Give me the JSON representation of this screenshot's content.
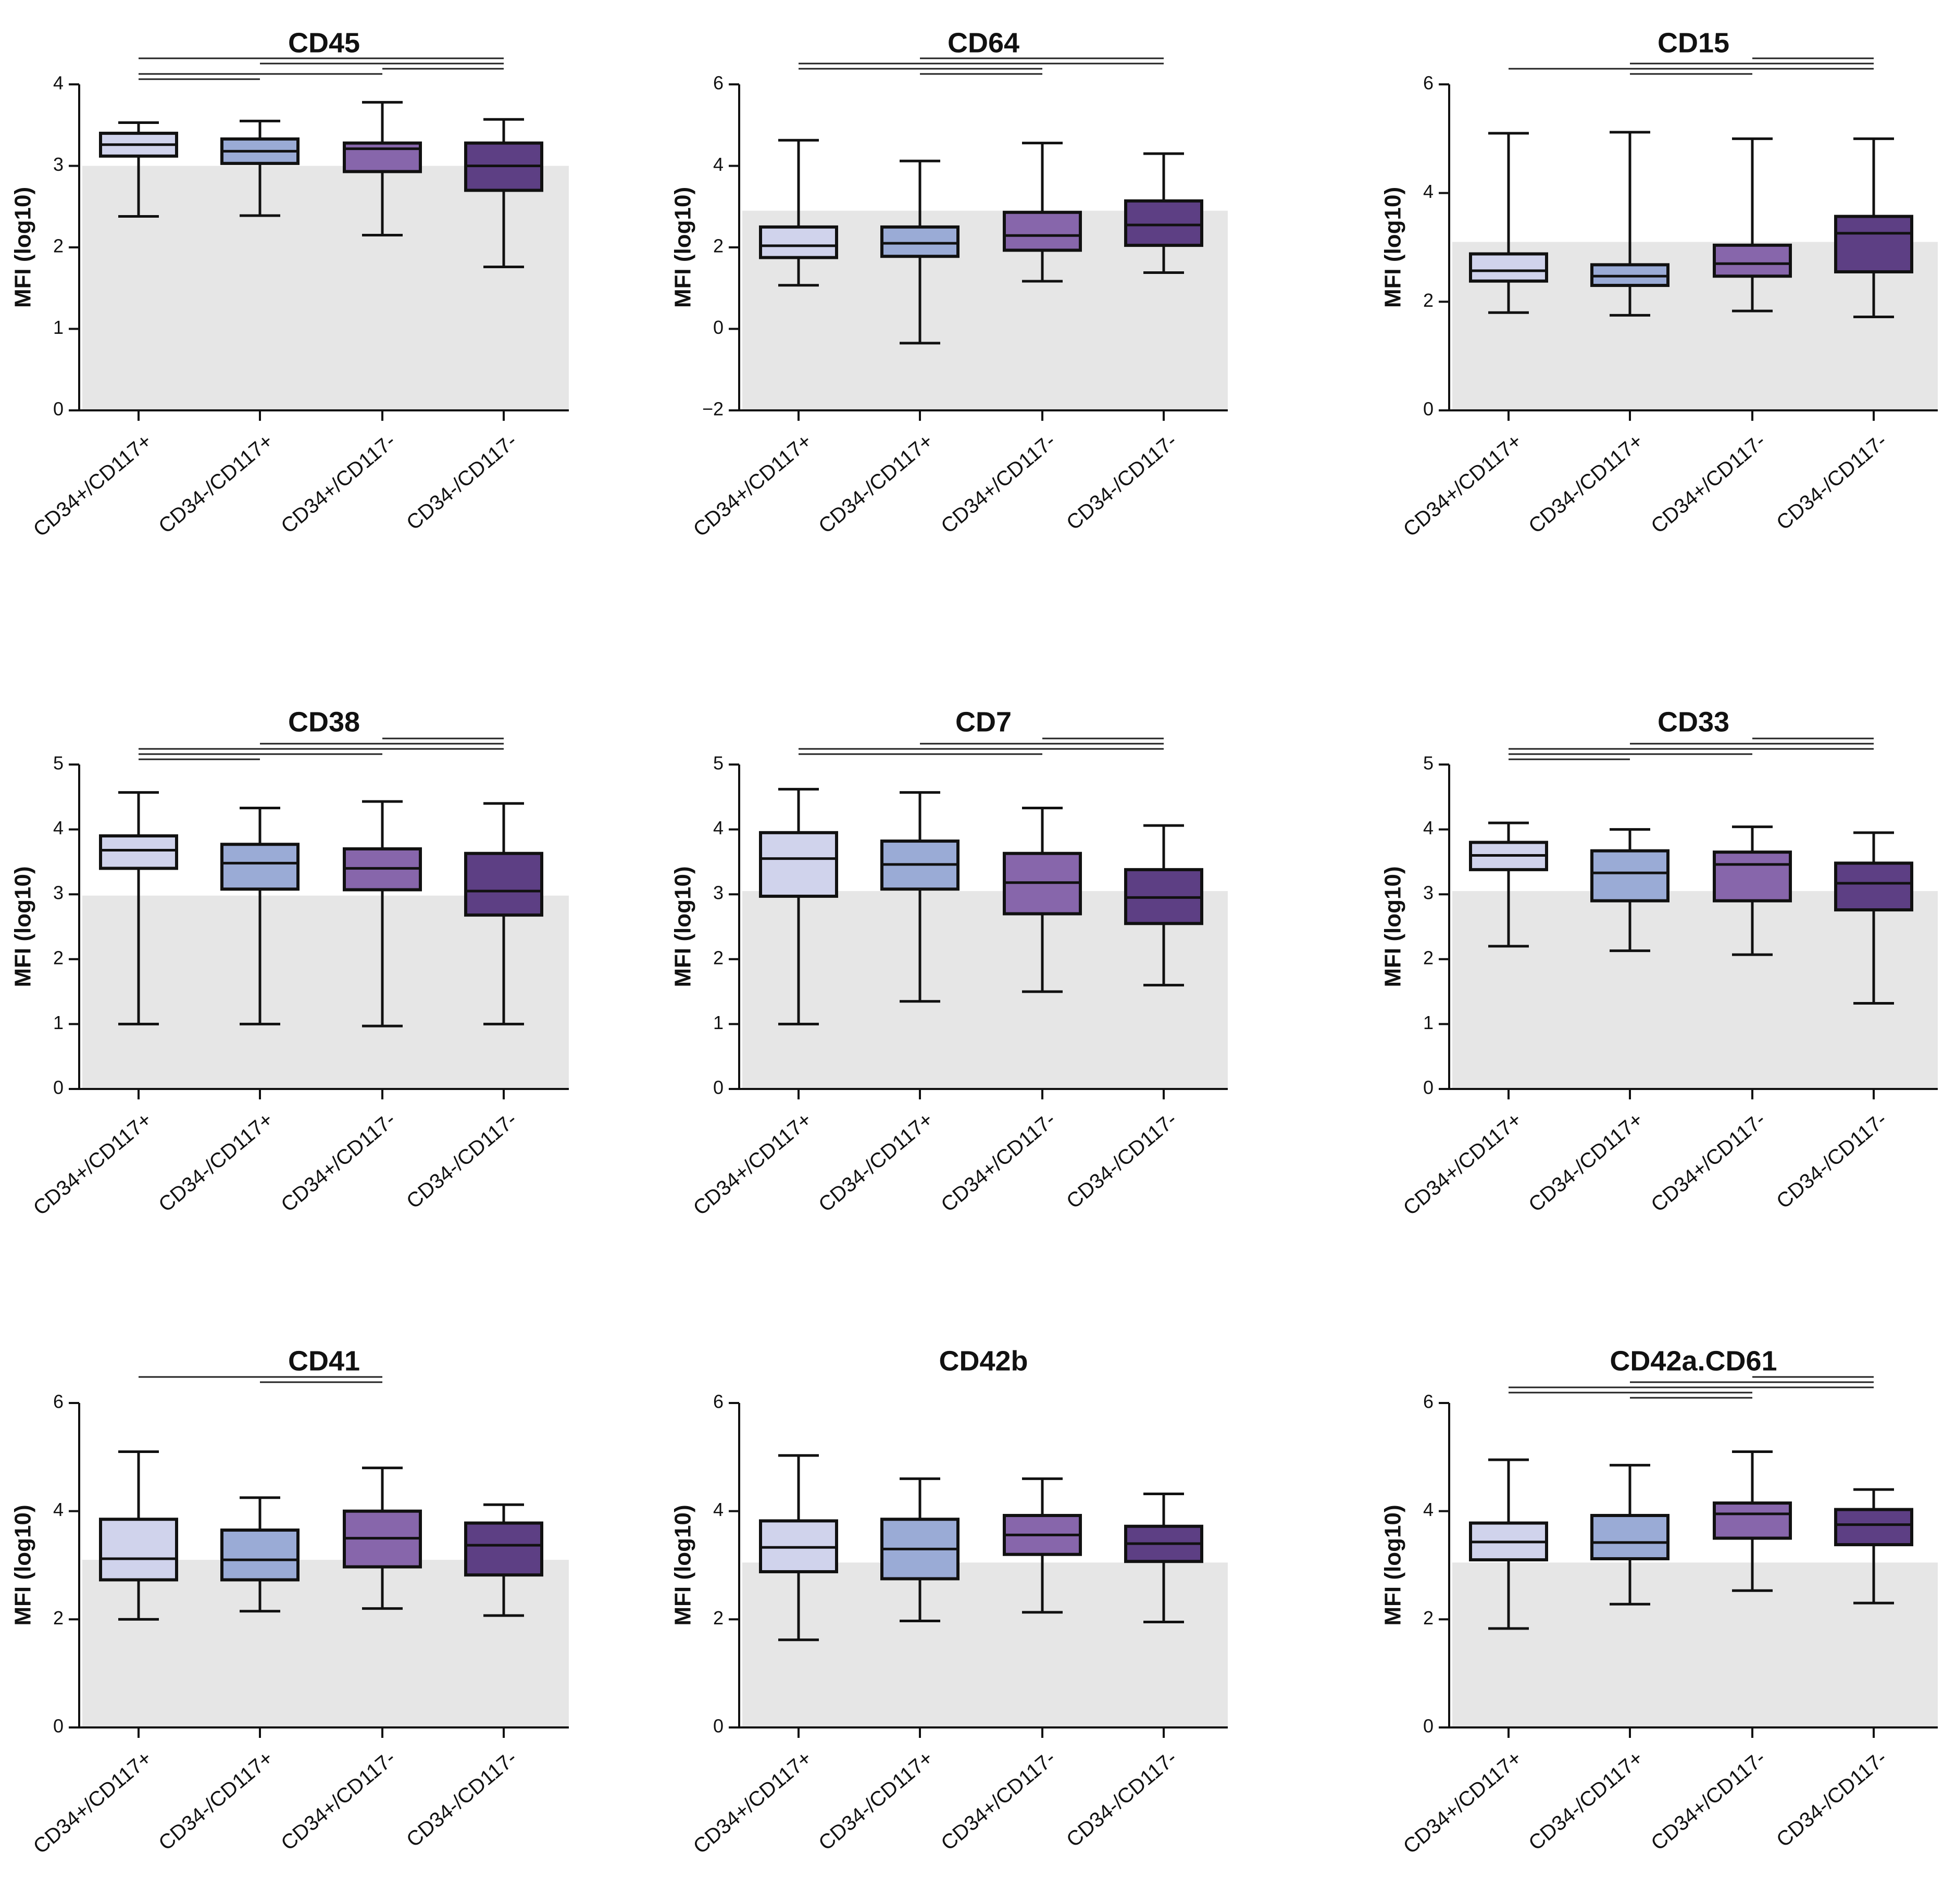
{
  "figure": {
    "background": "#ffffff",
    "reference_band_color": "#e6e6e6",
    "axis_color": "#111111"
  },
  "chart_data": [
    {
      "type": "boxplot",
      "title": "CD45",
      "ylabel": "MFI (log10)",
      "ylim": [
        0,
        4
      ],
      "yticks": [
        0,
        1,
        2,
        3,
        4
      ],
      "reference_band": [
        0,
        3.0
      ],
      "categories": [
        "CD34+/CD117+",
        "CD34-/CD117+",
        "CD34+/CD117-",
        "CD34-/CD117-"
      ],
      "colors": [
        "#d0d3ec",
        "#9aabd6",
        "#8766ab",
        "#5d3f84"
      ],
      "boxes": [
        {
          "min": 2.38,
          "q1": 3.12,
          "median": 3.26,
          "q3": 3.4,
          "max": 3.53
        },
        {
          "min": 2.39,
          "q1": 3.03,
          "median": 3.18,
          "q3": 3.33,
          "max": 3.55
        },
        {
          "min": 2.15,
          "q1": 2.93,
          "median": 3.21,
          "q3": 3.28,
          "max": 3.78
        },
        {
          "min": 1.76,
          "q1": 2.7,
          "median": 3.0,
          "q3": 3.28,
          "max": 3.57
        }
      ],
      "comparisons": [
        [
          0,
          3
        ],
        [
          1,
          3
        ],
        [
          2,
          3
        ],
        [
          0,
          2
        ],
        [
          0,
          1
        ]
      ]
    },
    {
      "type": "boxplot",
      "title": "CD64",
      "ylabel": "MFI (log10)",
      "ylim": [
        -2,
        6
      ],
      "yticks": [
        -2,
        0,
        2,
        4,
        6
      ],
      "reference_band": [
        -2,
        2.9
      ],
      "categories": [
        "CD34+/CD117+",
        "CD34-/CD117+",
        "CD34+/CD117-",
        "CD34-/CD117-"
      ],
      "colors": [
        "#d0d3ec",
        "#9aabd6",
        "#8766ab",
        "#5d3f84"
      ],
      "boxes": [
        {
          "min": 1.07,
          "q1": 1.75,
          "median": 2.04,
          "q3": 2.5,
          "max": 4.63
        },
        {
          "min": -0.35,
          "q1": 1.78,
          "median": 2.1,
          "q3": 2.5,
          "max": 4.12
        },
        {
          "min": 1.17,
          "q1": 1.93,
          "median": 2.29,
          "q3": 2.86,
          "max": 4.56
        },
        {
          "min": 1.38,
          "q1": 2.05,
          "median": 2.55,
          "q3": 3.14,
          "max": 4.3
        }
      ],
      "comparisons": [
        [
          1,
          3
        ],
        [
          0,
          3
        ],
        [
          0,
          2
        ],
        [
          1,
          2
        ]
      ]
    },
    {
      "type": "boxplot",
      "title": "CD15",
      "ylabel": "MFI (log10)",
      "ylim": [
        0,
        6
      ],
      "yticks": [
        0,
        2,
        4,
        6
      ],
      "reference_band": [
        0,
        3.1
      ],
      "categories": [
        "CD34+/CD117+",
        "CD34-/CD117+",
        "CD34+/CD117-",
        "CD34-/CD117-"
      ],
      "colors": [
        "#d0d3ec",
        "#9aabd6",
        "#8766ab",
        "#5d3f84"
      ],
      "boxes": [
        {
          "min": 1.8,
          "q1": 2.38,
          "median": 2.57,
          "q3": 2.88,
          "max": 5.1
        },
        {
          "min": 1.75,
          "q1": 2.3,
          "median": 2.47,
          "q3": 2.68,
          "max": 5.12
        },
        {
          "min": 1.83,
          "q1": 2.47,
          "median": 2.7,
          "q3": 3.04,
          "max": 5.0
        },
        {
          "min": 1.72,
          "q1": 2.55,
          "median": 3.26,
          "q3": 3.57,
          "max": 5.0
        }
      ],
      "comparisons": [
        [
          2,
          3
        ],
        [
          1,
          3
        ],
        [
          0,
          3
        ],
        [
          1,
          2
        ]
      ]
    },
    {
      "type": "boxplot",
      "title": "CD38",
      "ylabel": "MFI (log10)",
      "ylim": [
        0,
        5
      ],
      "yticks": [
        0,
        1,
        2,
        3,
        4,
        5
      ],
      "reference_band": [
        0,
        2.98
      ],
      "categories": [
        "CD34+/CD117+",
        "CD34-/CD117+",
        "CD34+/CD117-",
        "CD34-/CD117-"
      ],
      "colors": [
        "#d0d3ec",
        "#9aabd6",
        "#8766ab",
        "#5d3f84"
      ],
      "boxes": [
        {
          "min": 1.0,
          "q1": 3.4,
          "median": 3.68,
          "q3": 3.9,
          "max": 4.57
        },
        {
          "min": 1.0,
          "q1": 3.08,
          "median": 3.48,
          "q3": 3.77,
          "max": 4.33
        },
        {
          "min": 0.97,
          "q1": 3.07,
          "median": 3.4,
          "q3": 3.7,
          "max": 4.43
        },
        {
          "min": 1.0,
          "q1": 2.68,
          "median": 3.05,
          "q3": 3.63,
          "max": 4.4
        }
      ],
      "comparisons": [
        [
          2,
          3
        ],
        [
          1,
          3
        ],
        [
          0,
          3
        ],
        [
          0,
          2
        ],
        [
          0,
          1
        ]
      ]
    },
    {
      "type": "boxplot",
      "title": "CD7",
      "ylabel": "MFI (log10)",
      "ylim": [
        0,
        5
      ],
      "yticks": [
        0,
        1,
        2,
        3,
        4,
        5
      ],
      "reference_band": [
        0,
        3.05
      ],
      "categories": [
        "CD34+/CD117+",
        "CD34-/CD117+",
        "CD34+/CD117-",
        "CD34-/CD117-"
      ],
      "colors": [
        "#d0d3ec",
        "#9aabd6",
        "#8766ab",
        "#5d3f84"
      ],
      "boxes": [
        {
          "min": 1.0,
          "q1": 2.97,
          "median": 3.55,
          "q3": 3.95,
          "max": 4.62
        },
        {
          "min": 1.35,
          "q1": 3.08,
          "median": 3.46,
          "q3": 3.82,
          "max": 4.57
        },
        {
          "min": 1.5,
          "q1": 2.7,
          "median": 3.18,
          "q3": 3.63,
          "max": 4.33
        },
        {
          "min": 1.6,
          "q1": 2.55,
          "median": 2.95,
          "q3": 3.38,
          "max": 4.06
        }
      ],
      "comparisons": [
        [
          2,
          3
        ],
        [
          1,
          3
        ],
        [
          0,
          3
        ],
        [
          0,
          2
        ]
      ]
    },
    {
      "type": "boxplot",
      "title": "CD33",
      "ylabel": "MFI (log10)",
      "ylim": [
        0,
        5
      ],
      "yticks": [
        0,
        1,
        2,
        3,
        4,
        5
      ],
      "reference_band": [
        0,
        3.05
      ],
      "categories": [
        "CD34+/CD117+",
        "CD34-/CD117+",
        "CD34+/CD117-",
        "CD34-/CD117-"
      ],
      "colors": [
        "#d0d3ec",
        "#9aabd6",
        "#8766ab",
        "#5d3f84"
      ],
      "boxes": [
        {
          "min": 2.2,
          "q1": 3.38,
          "median": 3.6,
          "q3": 3.8,
          "max": 4.1
        },
        {
          "min": 2.13,
          "q1": 2.9,
          "median": 3.33,
          "q3": 3.67,
          "max": 4.0
        },
        {
          "min": 2.07,
          "q1": 2.9,
          "median": 3.46,
          "q3": 3.65,
          "max": 4.04
        },
        {
          "min": 1.32,
          "q1": 2.76,
          "median": 3.17,
          "q3": 3.48,
          "max": 3.95
        }
      ],
      "comparisons": [
        [
          2,
          3
        ],
        [
          1,
          3
        ],
        [
          0,
          3
        ],
        [
          0,
          2
        ],
        [
          0,
          1
        ]
      ]
    },
    {
      "type": "boxplot",
      "title": "CD41",
      "ylabel": "MFI (log10)",
      "ylim": [
        0,
        6
      ],
      "yticks": [
        0,
        2,
        4,
        6
      ],
      "reference_band": [
        0,
        3.1
      ],
      "categories": [
        "CD34+/CD117+",
        "CD34-/CD117+",
        "CD34+/CD117-",
        "CD34-/CD117-"
      ],
      "colors": [
        "#d0d3ec",
        "#9aabd6",
        "#8766ab",
        "#5d3f84"
      ],
      "boxes": [
        {
          "min": 2.0,
          "q1": 2.73,
          "median": 3.12,
          "q3": 3.85,
          "max": 5.1
        },
        {
          "min": 2.15,
          "q1": 2.73,
          "median": 3.1,
          "q3": 3.65,
          "max": 4.25
        },
        {
          "min": 2.2,
          "q1": 2.97,
          "median": 3.5,
          "q3": 4.0,
          "max": 4.8
        },
        {
          "min": 2.07,
          "q1": 2.82,
          "median": 3.37,
          "q3": 3.78,
          "max": 4.12
        }
      ],
      "comparisons": [
        [
          0,
          2
        ],
        [
          1,
          2
        ]
      ]
    },
    {
      "type": "boxplot",
      "title": "CD42b",
      "ylabel": "MFI (log10)",
      "ylim": [
        0,
        6
      ],
      "yticks": [
        0,
        2,
        4,
        6
      ],
      "reference_band": [
        0,
        3.05
      ],
      "categories": [
        "CD34+/CD117+",
        "CD34-/CD117+",
        "CD34+/CD117-",
        "CD34-/CD117-"
      ],
      "colors": [
        "#d0d3ec",
        "#9aabd6",
        "#8766ab",
        "#5d3f84"
      ],
      "boxes": [
        {
          "min": 1.62,
          "q1": 2.88,
          "median": 3.33,
          "q3": 3.82,
          "max": 5.03
        },
        {
          "min": 1.97,
          "q1": 2.75,
          "median": 3.3,
          "q3": 3.85,
          "max": 4.6
        },
        {
          "min": 2.13,
          "q1": 3.2,
          "median": 3.56,
          "q3": 3.92,
          "max": 4.6
        },
        {
          "min": 1.95,
          "q1": 3.07,
          "median": 3.4,
          "q3": 3.72,
          "max": 4.32
        }
      ],
      "comparisons": []
    },
    {
      "type": "boxplot",
      "title": "CD42a.CD61",
      "ylabel": "MFI (log10)",
      "ylim": [
        0,
        6
      ],
      "yticks": [
        0,
        2,
        4,
        6
      ],
      "reference_band": [
        0,
        3.05
      ],
      "categories": [
        "CD34+/CD117+",
        "CD34-/CD117+",
        "CD34+/CD117-",
        "CD34-/CD117-"
      ],
      "colors": [
        "#d0d3ec",
        "#9aabd6",
        "#8766ab",
        "#5d3f84"
      ],
      "boxes": [
        {
          "min": 1.83,
          "q1": 3.1,
          "median": 3.43,
          "q3": 3.78,
          "max": 4.95
        },
        {
          "min": 2.28,
          "q1": 3.12,
          "median": 3.42,
          "q3": 3.92,
          "max": 4.85
        },
        {
          "min": 2.53,
          "q1": 3.5,
          "median": 3.95,
          "q3": 4.15,
          "max": 5.1
        },
        {
          "min": 2.3,
          "q1": 3.38,
          "median": 3.75,
          "q3": 4.03,
          "max": 4.4
        }
      ],
      "comparisons": [
        [
          2,
          3
        ],
        [
          1,
          3
        ],
        [
          0,
          3
        ],
        [
          0,
          2
        ],
        [
          1,
          2
        ]
      ]
    }
  ]
}
